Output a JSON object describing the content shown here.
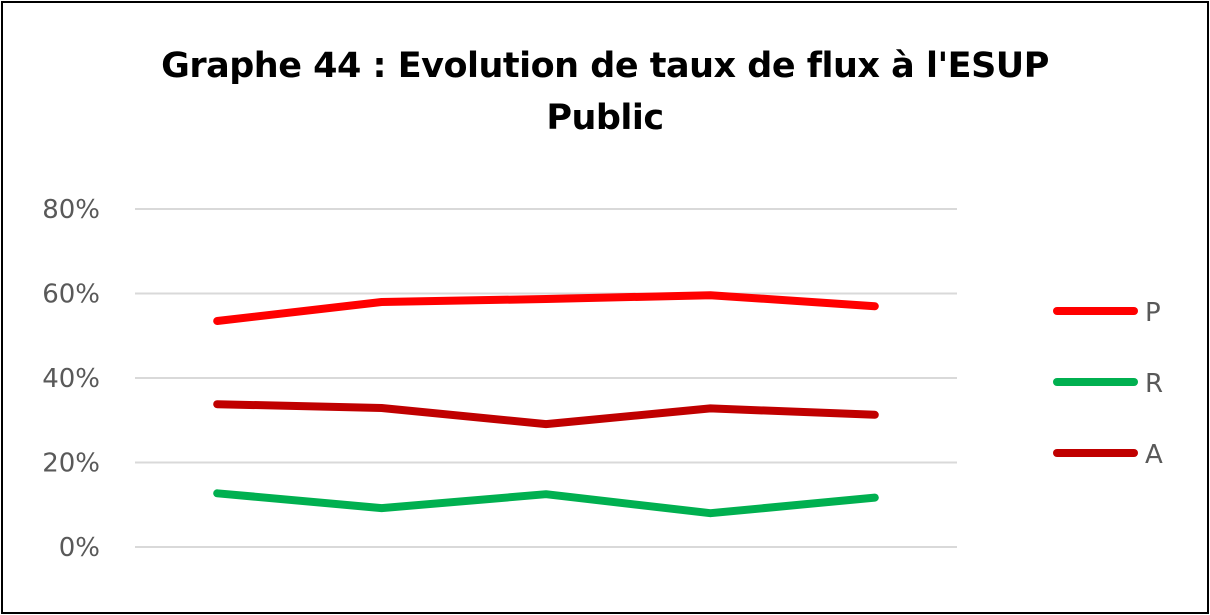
{
  "chart_data": {
    "type": "line",
    "title_line1": "Graphe 44 : Evolution de taux de flux à l'ESUP",
    "title_line2": "Public",
    "xlabel": "",
    "ylabel": "",
    "ylim": [
      0,
      0.8
    ],
    "y_ticks": [
      {
        "value": 0,
        "label": "0%"
      },
      {
        "value": 0.2,
        "label": "20%"
      },
      {
        "value": 0.4,
        "label": "40%"
      },
      {
        "value": 0.6,
        "label": "60%"
      },
      {
        "value": 0.8,
        "label": "80%"
      }
    ],
    "categories": [
      "",
      "",
      "",
      "",
      ""
    ],
    "grid": true,
    "legend_position": "right",
    "series": [
      {
        "name": "P",
        "color": "#ff0000",
        "values": [
          0.535,
          0.58,
          0.587,
          0.596,
          0.57
        ]
      },
      {
        "name": "R",
        "color": "#00b050",
        "values": [
          0.127,
          0.092,
          0.125,
          0.08,
          0.117
        ]
      },
      {
        "name": "A",
        "color": "#c00000",
        "values": [
          0.338,
          0.329,
          0.291,
          0.328,
          0.313
        ]
      }
    ]
  }
}
